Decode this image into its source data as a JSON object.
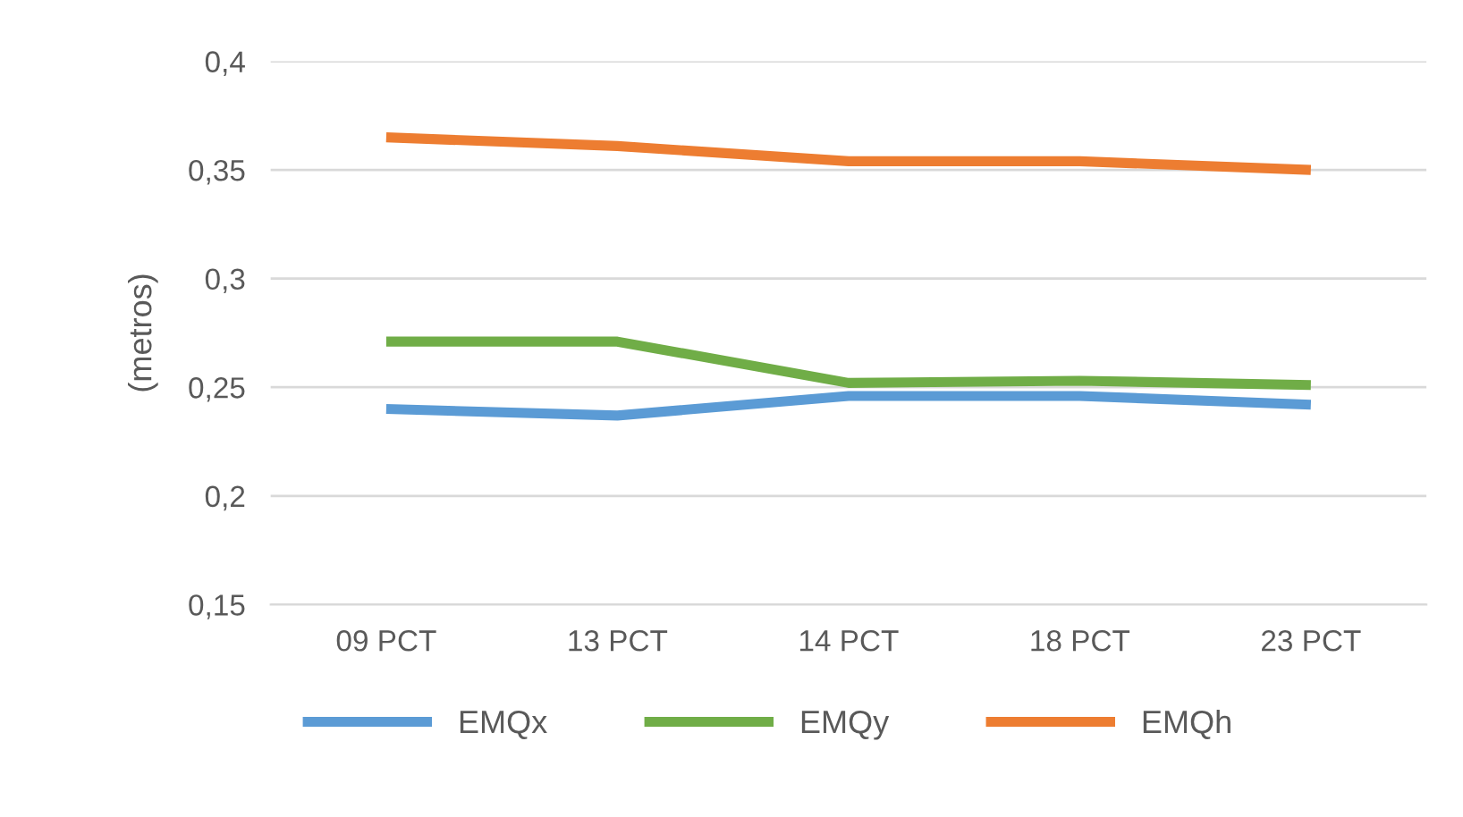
{
  "chart_data": {
    "type": "line",
    "ylabel": "(metros)",
    "categories": [
      "09 PCT",
      "13 PCT",
      "14 PCT",
      "18 PCT",
      "23 PCT"
    ],
    "series": [
      {
        "name": "EMQx",
        "color": "#5b9bd5",
        "values": [
          0.24,
          0.237,
          0.246,
          0.246,
          0.242
        ]
      },
      {
        "name": "EMQy",
        "color": "#70ad47",
        "values": [
          0.271,
          0.271,
          0.252,
          0.253,
          0.251
        ]
      },
      {
        "name": "EMQh",
        "color": "#ed7d31",
        "values": [
          0.365,
          0.361,
          0.354,
          0.354,
          0.35
        ]
      }
    ],
    "ylim": [
      0.15,
      0.4
    ],
    "yticks": [
      {
        "value": 0.15,
        "label": "0,15"
      },
      {
        "value": 0.2,
        "label": "0,2"
      },
      {
        "value": 0.25,
        "label": "0,25"
      },
      {
        "value": 0.3,
        "label": "0,3"
      },
      {
        "value": 0.35,
        "label": "0,35"
      },
      {
        "value": 0.4,
        "label": "0,4"
      }
    ],
    "grid": "y",
    "legend": "bottom",
    "marker": "none",
    "line_style": "solid"
  }
}
